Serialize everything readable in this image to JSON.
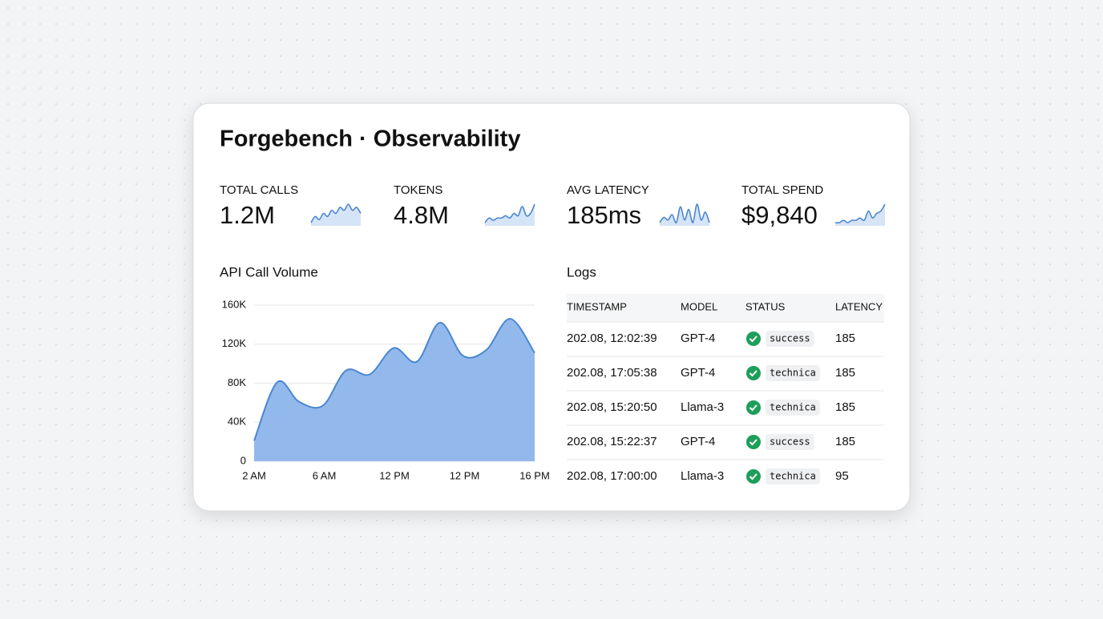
{
  "header": {
    "title": "Forgebench · Observability"
  },
  "kpis": [
    {
      "label": "TOTAL CALLS",
      "value": "1.2M",
      "trend": [
        3,
        5,
        4,
        6,
        5,
        7,
        6,
        8,
        7,
        9,
        7,
        8,
        6
      ]
    },
    {
      "label": "TOKENS",
      "value": "4.8M",
      "trend": [
        2,
        4,
        3,
        4,
        4,
        5,
        4,
        6,
        5,
        9,
        5,
        6,
        10
      ]
    },
    {
      "label": "AVG LATENCY",
      "value": "185ms",
      "trend": [
        3,
        5,
        4,
        6,
        3,
        9,
        4,
        8,
        3,
        10,
        4,
        7,
        3
      ]
    },
    {
      "label": "TOTAL SPEND",
      "value": "$9,840",
      "trend": [
        2,
        2,
        3,
        2,
        3,
        3,
        4,
        3,
        7,
        4,
        6,
        7,
        10
      ]
    }
  ],
  "chart_data": {
    "type": "area",
    "title": "API Call Volume",
    "x": [
      0,
      0.33,
      0.64,
      0.98,
      1.31,
      1.65,
      1.99,
      2.32,
      2.65,
      2.98,
      3.31,
      3.65,
      4
    ],
    "values": [
      21000,
      81000,
      61000,
      57000,
      93000,
      89000,
      116000,
      102000,
      142000,
      108000,
      114000,
      146000,
      111000
    ],
    "color": "#93b9ec",
    "line_color": "#4a86d0",
    "xlim": [
      0,
      4
    ],
    "xticks": [
      {
        "value": 0,
        "label": "2 AM"
      },
      {
        "value": 1,
        "label": "6 AM"
      },
      {
        "value": 2,
        "label": "12 PM"
      },
      {
        "value": 3,
        "label": "12 PM"
      },
      {
        "value": 4,
        "label": "16 PM"
      }
    ],
    "ylim": [
      0,
      160000
    ],
    "yticks": [
      0,
      {
        "value": 40000,
        "label": "40K"
      },
      {
        "value": 80000,
        "label": "80K"
      },
      {
        "value": 120000,
        "label": "120K"
      },
      {
        "value": 160000,
        "label": "160K"
      }
    ],
    "grid": true
  },
  "logs": {
    "title": "Logs",
    "columns": [
      "TIMESTAMP",
      "MODEL",
      "STATUS",
      "LATENCY"
    ],
    "rows": [
      [
        "202.08, 12:02:39",
        "GPT-4",
        "success",
        185
      ],
      [
        "202.08, 17:05:38",
        "GPT-4",
        "technica",
        185
      ],
      [
        "202.08, 15:20:50",
        "Llama-3",
        "technica",
        185
      ],
      [
        "202.08, 15:22:37",
        "GPT-4",
        "success",
        185
      ],
      [
        "202.08, 17:00:00",
        "Llama-3",
        "technica",
        95
      ]
    ]
  }
}
